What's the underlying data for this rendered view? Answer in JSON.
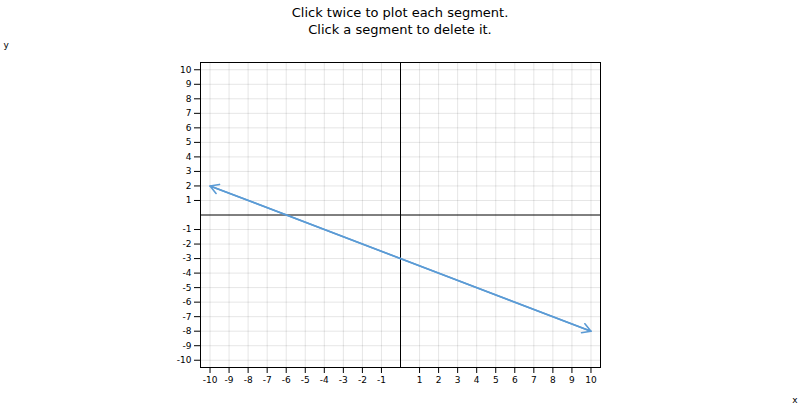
{
  "chart_data": {
    "type": "line",
    "title": "Click twice to plot each segment.",
    "subtitle": "Click a segment to delete it.",
    "x": [
      -10,
      10
    ],
    "series": [
      {
        "values": [
          2,
          -8
        ],
        "color": "#5b9bd5",
        "marker": "arrow"
      }
    ],
    "xlabel": "x",
    "ylabel": "y",
    "xlim": [
      -10.5,
      10.5
    ],
    "ylim": [
      -10.5,
      10.5
    ],
    "xticks": [
      -10,
      -9,
      -8,
      -7,
      -6,
      -5,
      -4,
      -3,
      -2,
      -1,
      1,
      2,
      3,
      4,
      5,
      6,
      7,
      8,
      9,
      10
    ],
    "yticks": [
      -10,
      -9,
      -8,
      -7,
      -6,
      -5,
      -4,
      -3,
      -2,
      -1,
      1,
      2,
      3,
      4,
      5,
      6,
      7,
      8,
      9,
      10
    ],
    "grid": true
  }
}
